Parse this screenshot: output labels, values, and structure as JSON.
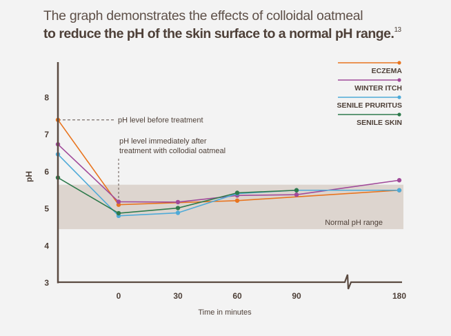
{
  "title": {
    "line1": "The graph demonstrates the effects of colloidal oatmeal",
    "line2": "to reduce the pH of the skin surface to a normal pH range.",
    "superscript": "13"
  },
  "chart_data": {
    "type": "line",
    "title": "The graph demonstrates the effects of colloidal oatmeal to reduce the pH of the skin surface to a normal pH range.",
    "xlabel": "Time in minutes",
    "ylabel": "pH",
    "ylim": [
      3,
      8.9
    ],
    "yticks": [
      3,
      4,
      5,
      6,
      7,
      8
    ],
    "x_categories": [
      "before",
      "0",
      "30",
      "60",
      "90",
      "180"
    ],
    "x_tick_labels": [
      "0",
      "30",
      "60",
      "90",
      "180"
    ],
    "axis_break": "between 90 and 180",
    "grid": false,
    "legend_position": "top-right",
    "normal_range": {
      "label": "Normal pH range",
      "low": 4.45,
      "high": 5.65,
      "color": "#ddd5cf"
    },
    "annotations": [
      {
        "text": "pH level before treatment",
        "at": "before"
      },
      {
        "text_lines": [
          "pH level immediately after",
          "treatment with collodial oatmeal"
        ],
        "at": "0"
      }
    ],
    "series": [
      {
        "name": "ECZEMA",
        "color": "#e8741e",
        "points": [
          [
            "before",
            7.4
          ],
          [
            "0",
            5.11
          ],
          [
            "60",
            5.22
          ],
          [
            "180",
            5.5
          ]
        ]
      },
      {
        "name": "WINTER ITCH",
        "color": "#a04a9a",
        "points": [
          [
            "before",
            6.74
          ],
          [
            "0",
            5.19
          ],
          [
            "30",
            5.18
          ],
          [
            "60",
            5.36
          ],
          [
            "90",
            5.38
          ],
          [
            "180",
            5.77
          ]
        ]
      },
      {
        "name": "SENILE PRURITUS",
        "color": "#4eaad8",
        "points": [
          [
            "before",
            6.47
          ],
          [
            "0",
            4.81
          ],
          [
            "30",
            4.89
          ],
          [
            "60",
            5.41
          ],
          [
            "90",
            5.5
          ],
          [
            "180",
            5.5
          ]
        ]
      },
      {
        "name": "SENILE SKIN",
        "color": "#2e7a4c",
        "points": [
          [
            "before",
            5.84
          ],
          [
            "0",
            4.88
          ],
          [
            "30",
            5.02
          ],
          [
            "60",
            5.43
          ],
          [
            "90",
            5.5
          ]
        ]
      }
    ]
  }
}
